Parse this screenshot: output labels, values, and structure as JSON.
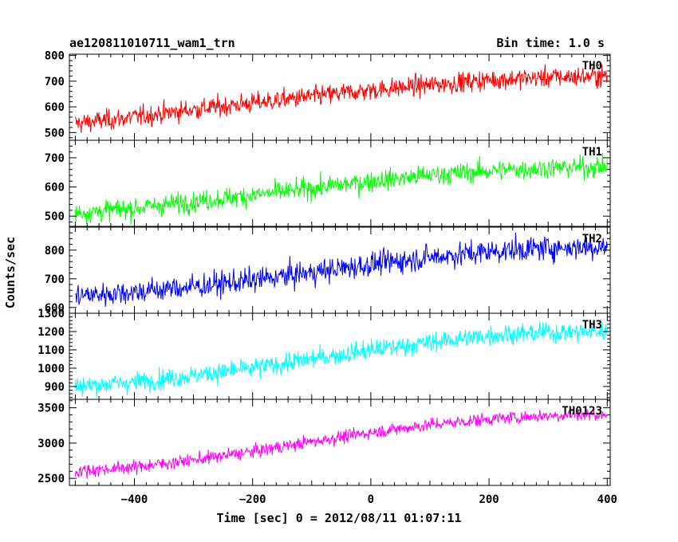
{
  "header": {
    "title": "ae120811010711_wam1_trn",
    "bin_time": "Bin time: 1.0 s"
  },
  "axes": {
    "xlabel": "Time [sec] 0 = 2012/08/11 01:07:11",
    "ylabel": "Counts/sec"
  },
  "chart_data": {
    "type": "line",
    "xlim": [
      -510,
      405
    ],
    "x_ticks": [
      -400,
      -200,
      0,
      200,
      400
    ],
    "x_tick_labels": [
      "−400",
      "−200",
      "0",
      "200",
      "400"
    ],
    "bin_size_sec": 1.0,
    "series": [
      {
        "name": "TH0",
        "color": "#ff0000",
        "ylim": [
          470,
          805
        ],
        "y_ticks": [
          500,
          600,
          700,
          800
        ],
        "y_tick_labels": [
          "500",
          "600",
          "700",
          "800"
        ],
        "x": [
          -500,
          -400,
          -300,
          -200,
          -100,
          0,
          100,
          200,
          300,
          400
        ],
        "values": [
          535,
          560,
          590,
          615,
          640,
          665,
          685,
          705,
          715,
          720
        ],
        "noise": 28
      },
      {
        "name": "TH1",
        "color": "#00ff00",
        "ylim": [
          465,
          760
        ],
        "y_ticks": [
          500,
          600,
          700
        ],
        "y_tick_labels": [
          "500",
          "600",
          "700"
        ],
        "x": [
          -500,
          -400,
          -300,
          -200,
          -100,
          0,
          100,
          200,
          300,
          400
        ],
        "values": [
          510,
          528,
          550,
          572,
          595,
          620,
          640,
          655,
          665,
          670
        ],
        "noise": 25
      },
      {
        "name": "TH2",
        "color": "#0000ff",
        "ylim": [
          580,
          880
        ],
        "y_ticks": [
          600,
          700,
          800
        ],
        "y_tick_labels": [
          "600",
          "700",
          "800"
        ],
        "x": [
          -500,
          -400,
          -300,
          -200,
          -100,
          0,
          100,
          200,
          300,
          400
        ],
        "values": [
          640,
          655,
          672,
          695,
          722,
          750,
          775,
          795,
          808,
          812
        ],
        "noise": 30
      },
      {
        "name": "TH3",
        "color": "#00ffff",
        "ylim": [
          830,
          1300
        ],
        "y_ticks": [
          900,
          1000,
          1100,
          1200,
          1300
        ],
        "y_tick_labels": [
          "900",
          "1000",
          "1100",
          "1200",
          "1300"
        ],
        "x": [
          -500,
          -400,
          -300,
          -200,
          -100,
          0,
          100,
          200,
          300,
          400
        ],
        "values": [
          900,
          925,
          960,
          1000,
          1050,
          1100,
          1140,
          1180,
          1195,
          1200
        ],
        "noise": 38
      },
      {
        "name": "TH0123",
        "color": "#ff00ff",
        "ylim": [
          2400,
          3620
        ],
        "y_ticks": [
          2500,
          3000,
          3500
        ],
        "y_tick_labels": [
          "2500",
          "3000",
          "3500"
        ],
        "x": [
          -500,
          -400,
          -300,
          -200,
          -100,
          0,
          100,
          200,
          300,
          400
        ],
        "values": [
          2600,
          2660,
          2760,
          2880,
          3020,
          3150,
          3260,
          3340,
          3390,
          3410
        ],
        "noise": 65
      }
    ]
  }
}
